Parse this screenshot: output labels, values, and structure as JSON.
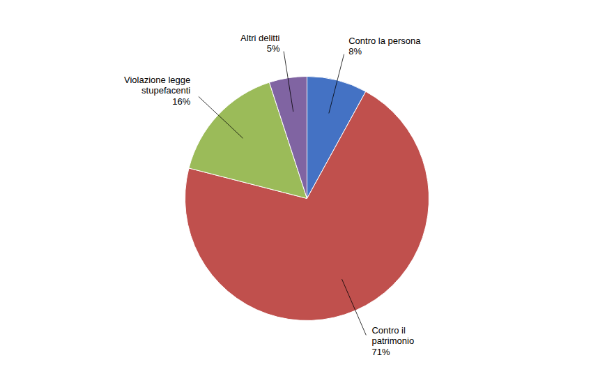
{
  "chart_data": {
    "type": "pie",
    "categories": [
      "Contro la persona",
      "Contro il\npatrimonio",
      "Violazione legge\nstupefacenti",
      "Altri delitti"
    ],
    "values": [
      8,
      71,
      16,
      5
    ],
    "value_labels": [
      "8%",
      "71%",
      "16%",
      "5%"
    ],
    "colors": [
      "#4472C4",
      "#C0504D",
      "#9BBB59",
      "#8064A2"
    ],
    "data_labels": true
  }
}
